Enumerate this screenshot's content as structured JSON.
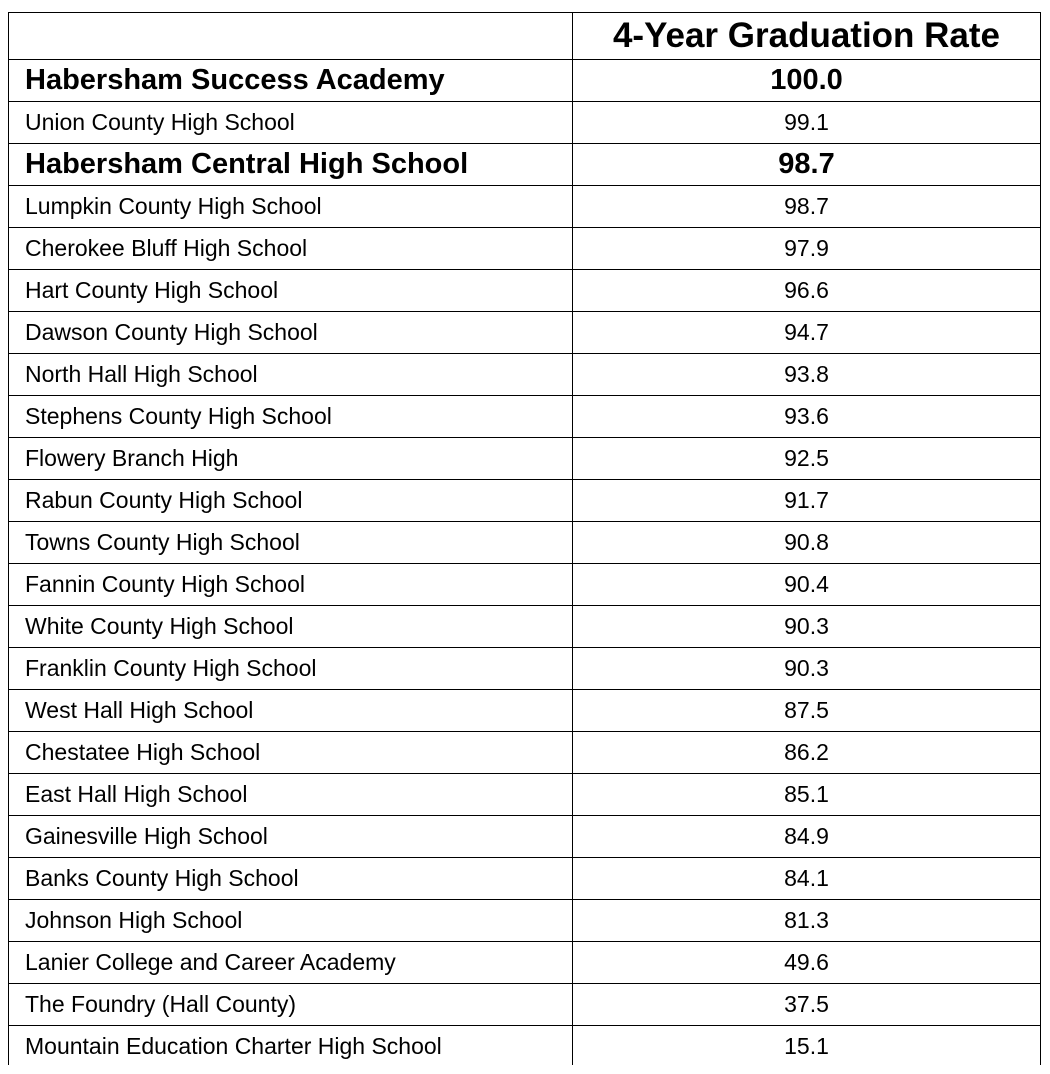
{
  "table": {
    "header": [
      "",
      "4-Year Graduation Rate"
    ],
    "rows": [
      {
        "school": "Habersham Success Academy",
        "rate": "100.0",
        "bold": true
      },
      {
        "school": "Union County High School",
        "rate": "99.1"
      },
      {
        "school": "Habersham Central High School",
        "rate": "98.7",
        "bold": true
      },
      {
        "school": "Lumpkin County High School",
        "rate": "98.7"
      },
      {
        "school": "Cherokee Bluff High School",
        "rate": "97.9"
      },
      {
        "school": "Hart County High School",
        "rate": "96.6"
      },
      {
        "school": "Dawson County High School",
        "rate": "94.7"
      },
      {
        "school": "North Hall High School",
        "rate": "93.8"
      },
      {
        "school": "Stephens County High School",
        "rate": "93.6"
      },
      {
        "school": "Flowery Branch High",
        "rate": "92.5"
      },
      {
        "school": "Rabun County High School",
        "rate": "91.7"
      },
      {
        "school": "Towns County High School",
        "rate": "90.8"
      },
      {
        "school": "Fannin County High School",
        "rate": "90.4"
      },
      {
        "school": "White County High School",
        "rate": "90.3"
      },
      {
        "school": "Franklin County High School",
        "rate": "90.3"
      },
      {
        "school": "West Hall High School",
        "rate": "87.5"
      },
      {
        "school": "Chestatee High School",
        "rate": "86.2"
      },
      {
        "school": "East Hall High School",
        "rate": "85.1"
      },
      {
        "school": "Gainesville High School",
        "rate": "84.9"
      },
      {
        "school": "Banks County High School",
        "rate": "84.1"
      },
      {
        "school": "Johnson High School",
        "rate": "81.3"
      },
      {
        "school": "Lanier College and Career Academy",
        "rate": "49.6"
      },
      {
        "school": "The Foundry (Hall County)",
        "rate": "37.5"
      },
      {
        "school": "Mountain Education Charter High School",
        "rate": "15.1"
      }
    ]
  }
}
